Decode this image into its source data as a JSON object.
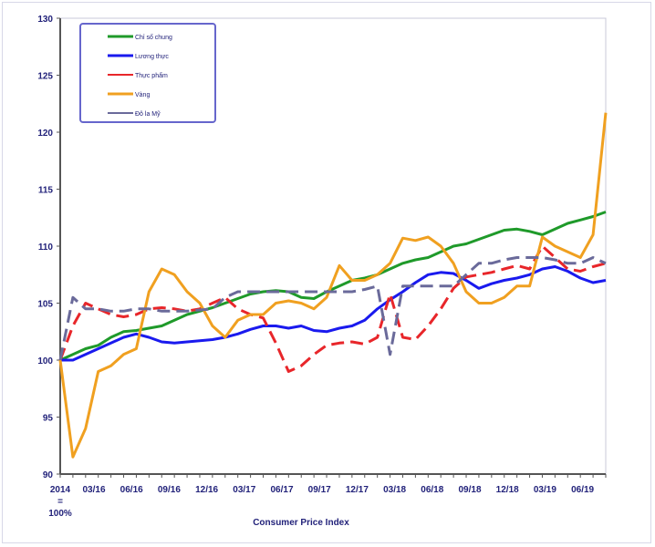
{
  "chart_data": {
    "type": "line",
    "title": "",
    "xlabel": "Consumer Price Index",
    "ylabel": "",
    "ylim": [
      90,
      130
    ],
    "yticks": [
      90,
      95,
      100,
      105,
      110,
      115,
      120,
      125,
      130
    ],
    "xtick_labels": [
      "2014 = 100%",
      "03/16",
      "06/16",
      "09/16",
      "12/16",
      "03/17",
      "06/17",
      "09/17",
      "12/17",
      "03/18",
      "06/18",
      "09/18",
      "12/18",
      "03/19",
      "06/19"
    ],
    "grid": false,
    "legend_placement": "top-left",
    "series": [
      {
        "name": "Chỉ số chung",
        "color": "#1f9a2a",
        "dash": false,
        "values": [
          100,
          100.5,
          101,
          101.3,
          102,
          102.5,
          102.6,
          102.8,
          103,
          103.5,
          104,
          104.3,
          104.6,
          105,
          105.4,
          105.8,
          106,
          106.1,
          106,
          105.5,
          105.4,
          106,
          106.5,
          107,
          107.2,
          107.5,
          108,
          108.5,
          108.8,
          109,
          109.5,
          110,
          110.2,
          110.6,
          111,
          111.4,
          111.5,
          111.3,
          111,
          111.5,
          112,
          112.3,
          112.6,
          113
        ]
      },
      {
        "name": "Lương thực",
        "color": "#1a1aee",
        "dash": false,
        "values": [
          100,
          100,
          100.5,
          101,
          101.5,
          102,
          102.3,
          102,
          101.6,
          101.5,
          101.6,
          101.7,
          101.8,
          102,
          102.3,
          102.7,
          103,
          103,
          102.8,
          103,
          102.6,
          102.5,
          102.8,
          103,
          103.5,
          104.5,
          105.3,
          106,
          106.8,
          107.5,
          107.7,
          107.6,
          107,
          106.3,
          106.7,
          107,
          107.2,
          107.5,
          108,
          108.2,
          107.8,
          107.2,
          106.8,
          107
        ]
      },
      {
        "name": "Thực phẩm",
        "color": "#e8262a",
        "dash": true,
        "values": [
          100,
          103,
          105,
          104.5,
          104,
          103.8,
          104,
          104.5,
          104.6,
          104.5,
          104.3,
          104.5,
          105,
          105.5,
          104.5,
          104,
          103.7,
          101.5,
          99,
          99.5,
          100.5,
          101.3,
          101.5,
          101.6,
          101.4,
          102,
          105.8,
          102,
          101.8,
          103,
          104.5,
          106.3,
          107.3,
          107.5,
          107.7,
          108,
          108.3,
          108,
          110,
          109,
          108,
          107.8,
          108.2,
          108.5
        ]
      },
      {
        "name": "Vàng",
        "color": "#f0a020",
        "dash": false,
        "values": [
          100,
          91.5,
          94,
          99,
          99.5,
          100.5,
          101,
          106,
          108,
          107.5,
          106,
          105,
          103,
          102,
          103.5,
          104,
          104,
          105,
          105.2,
          105,
          104.5,
          105.5,
          108.3,
          107,
          107,
          107.5,
          108.5,
          110.7,
          110.5,
          110.8,
          110,
          108.5,
          106,
          105,
          105,
          105.5,
          106.5,
          106.5,
          110.8,
          110,
          109.5,
          109,
          111,
          121.7
        ]
      },
      {
        "name": "Đô la Mỹ",
        "color": "#6a6a9a",
        "dash": true,
        "values": [
          100,
          105.5,
          104.5,
          104.5,
          104.3,
          104.3,
          104.5,
          104.5,
          104.3,
          104.3,
          104.3,
          104.4,
          104.5,
          105.5,
          106,
          106,
          106,
          106,
          106,
          106,
          106,
          106,
          106,
          106,
          106.2,
          106.5,
          100.5,
          106.5,
          106.5,
          106.5,
          106.5,
          106.5,
          107.5,
          108.5,
          108.5,
          108.8,
          109,
          109,
          109,
          108.8,
          108.5,
          108.5,
          109,
          108.5
        ]
      }
    ]
  }
}
